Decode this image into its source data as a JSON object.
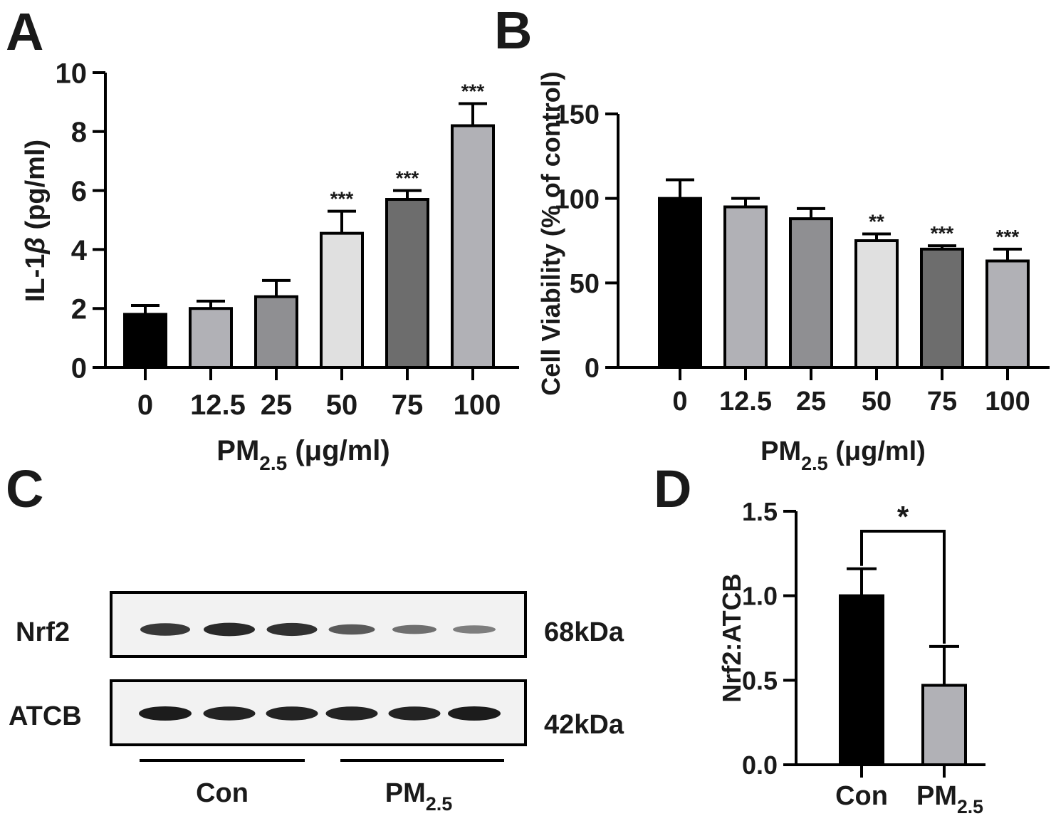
{
  "colors": {
    "black": "#000000",
    "light_gray": "#b1b1b6",
    "mid_gray": "#8f8f92",
    "pale_gray": "#e0e0e0",
    "dark_gray": "#6d6d6d",
    "blot_bg": "#f2f2f2",
    "band": "#1c1c1c"
  },
  "chart_data": [
    {
      "panel": "A",
      "type": "bar",
      "categories": [
        "0",
        "12.5",
        "25",
        "50",
        "75",
        "100"
      ],
      "values": [
        1.8,
        2.0,
        2.4,
        4.55,
        5.7,
        8.2
      ],
      "errors": [
        0.3,
        0.25,
        0.55,
        0.75,
        0.3,
        0.75
      ],
      "significance": [
        "",
        "",
        "",
        "***",
        "***",
        "***"
      ],
      "bar_colors": [
        "#000000",
        "#b1b1b6",
        "#8f8f92",
        "#e0e0e0",
        "#6d6d6d",
        "#b1b1b6"
      ],
      "ylabel_main": "IL-1",
      "ylabel_greek": "β",
      "ylabel_unit": " (pg/ml)",
      "xlabel_main": "PM",
      "xlabel_sub": "2.5",
      "xlabel_mu": " (μ",
      "xlabel_rest": "g/ml)",
      "ylim": [
        0,
        10
      ],
      "yticks": [
        0,
        2,
        4,
        6,
        8,
        10
      ]
    },
    {
      "panel": "B",
      "type": "bar",
      "categories": [
        "0",
        "12.5",
        "25",
        "50",
        "75",
        "100"
      ],
      "values": [
        100,
        95,
        88,
        75,
        70,
        63
      ],
      "errors": [
        11,
        5,
        6,
        4,
        2,
        7
      ],
      "significance": [
        "",
        "",
        "",
        "**",
        "***",
        "***"
      ],
      "bar_colors": [
        "#000000",
        "#b1b1b6",
        "#8f8f92",
        "#e0e0e0",
        "#6d6d6d",
        "#b1b1b6"
      ],
      "ylabel": "Cell Viability (% of control)",
      "xlabel_main": "PM",
      "xlabel_sub": "2.5",
      "xlabel_mu": " (μ",
      "xlabel_rest": "g/ml)",
      "ylim": [
        0,
        150
      ],
      "yticks": [
        0,
        50,
        100,
        150
      ]
    },
    {
      "panel": "D",
      "type": "bar",
      "categories": [
        "Con",
        "PM"
      ],
      "category_subs": [
        "",
        "2.5"
      ],
      "values": [
        1.0,
        0.47
      ],
      "errors": [
        0.16,
        0.23
      ],
      "bar_colors": [
        "#000000",
        "#b1b1b6"
      ],
      "significance": "*",
      "ylabel": "Nrf2:ATCB",
      "ylim": [
        0,
        1.5
      ],
      "yticks": [
        "0.0",
        "0.5",
        "1.0",
        "1.5"
      ]
    }
  ],
  "panel_labels": {
    "a": "A",
    "b": "B",
    "c": "C",
    "d": "D"
  },
  "blot": {
    "rows": [
      {
        "label": "Nrf2",
        "size": "68kDa",
        "intensity": [
          0.8,
          0.9,
          0.85,
          0.55,
          0.4,
          0.3
        ]
      },
      {
        "label": "ATCB",
        "size": "42kDa",
        "intensity": [
          1.0,
          0.95,
          0.95,
          0.95,
          0.95,
          1.0
        ]
      }
    ],
    "groups": [
      {
        "label": "Con",
        "sub": ""
      },
      {
        "label": "PM",
        "sub": "2.5"
      }
    ]
  }
}
